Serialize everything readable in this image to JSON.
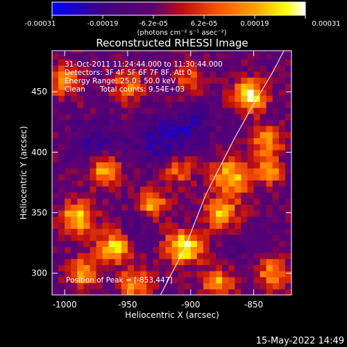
{
  "chart_data": {
    "type": "heatmap",
    "title": "Reconstructed RHESSI Image",
    "xlabel": "Heliocentric X (arcsec)",
    "ylabel": "Heliocentric Y (arcsec)",
    "xlim": [
      -1010,
      -820
    ],
    "ylim": [
      282,
      484
    ],
    "xticks": [
      -1000,
      -950,
      -900,
      -850
    ],
    "yticks": [
      300,
      350,
      400,
      450
    ],
    "colorbar": {
      "label": "(photons cm⁻² s⁻¹ asec⁻²)",
      "range": [
        -0.00031,
        0.00031
      ],
      "tick_labels": [
        "-0.00031",
        "-0.00019",
        "-6.2e-05",
        "6.2e-05",
        "0.00019",
        "0.00031"
      ],
      "colormap_stops": [
        "#0000ff",
        "#400080",
        "#600070",
        "#c01010",
        "#ff6000",
        "#ffa000",
        "#ffff00",
        "#ffffff"
      ]
    },
    "annotations": {
      "time_range": "31-Oct-2011 11:24:44.000 to 11:30:44.000",
      "detectors": "Detectors: 3F 4F 5F 6F 7F 8F, Att 0",
      "energy": "Energy Range: 25.0 - 50.0 keV",
      "method": "Clean",
      "counts": "Total counts: 9.54E+03",
      "peak": "Position of Peak = [-853,447]"
    },
    "limb": [
      {
        "x": -924,
        "y": 282
      },
      {
        "x": -905,
        "y": 320
      },
      {
        "x": -888,
        "y": 365
      },
      {
        "x": -865,
        "y": 412
      },
      {
        "x": -850,
        "y": 440
      },
      {
        "x": -835,
        "y": 466
      },
      {
        "x": -826,
        "y": 484
      }
    ],
    "hotspots": [
      {
        "x": -853,
        "y": 447,
        "v": 0.00031,
        "r": 9
      },
      {
        "x": -905,
        "y": 322,
        "v": 0.00029,
        "r": 10
      },
      {
        "x": -960,
        "y": 322,
        "v": 0.00026,
        "r": 9
      },
      {
        "x": -990,
        "y": 346,
        "v": 0.00022,
        "r": 10
      },
      {
        "x": -968,
        "y": 385,
        "v": 0.00021,
        "r": 9
      },
      {
        "x": -868,
        "y": 380,
        "v": 0.00022,
        "r": 11
      },
      {
        "x": -875,
        "y": 350,
        "v": 0.0002,
        "r": 9
      },
      {
        "x": -840,
        "y": 410,
        "v": 0.00018,
        "r": 9
      },
      {
        "x": -838,
        "y": 385,
        "v": 0.00016,
        "r": 8
      },
      {
        "x": -930,
        "y": 358,
        "v": 0.0002,
        "r": 8
      },
      {
        "x": -985,
        "y": 300,
        "v": 0.00018,
        "r": 9
      },
      {
        "x": -945,
        "y": 292,
        "v": 0.00016,
        "r": 9
      },
      {
        "x": -878,
        "y": 292,
        "v": 0.00018,
        "r": 9
      },
      {
        "x": -835,
        "y": 300,
        "v": 0.00016,
        "r": 9
      },
      {
        "x": -950,
        "y": 455,
        "v": 0.00012,
        "r": 10
      },
      {
        "x": -1000,
        "y": 460,
        "v": 0.00013,
        "r": 10
      },
      {
        "x": -900,
        "y": 460,
        "v": 0.0001,
        "r": 9
      },
      {
        "x": -910,
        "y": 385,
        "v": 0.00011,
        "r": 8
      },
      {
        "x": -975,
        "y": 405,
        "v": -0.00019,
        "r": 12
      },
      {
        "x": -925,
        "y": 410,
        "v": -0.00022,
        "r": 13
      },
      {
        "x": -900,
        "y": 420,
        "v": -0.00019,
        "r": 10
      },
      {
        "x": -945,
        "y": 335,
        "v": -0.00016,
        "r": 9
      },
      {
        "x": -870,
        "y": 315,
        "v": -0.00012,
        "r": 8
      },
      {
        "x": -895,
        "y": 440,
        "v": -0.00013,
        "r": 9
      }
    ]
  },
  "footer": {
    "timestamp": "15-May-2022 14:49"
  }
}
